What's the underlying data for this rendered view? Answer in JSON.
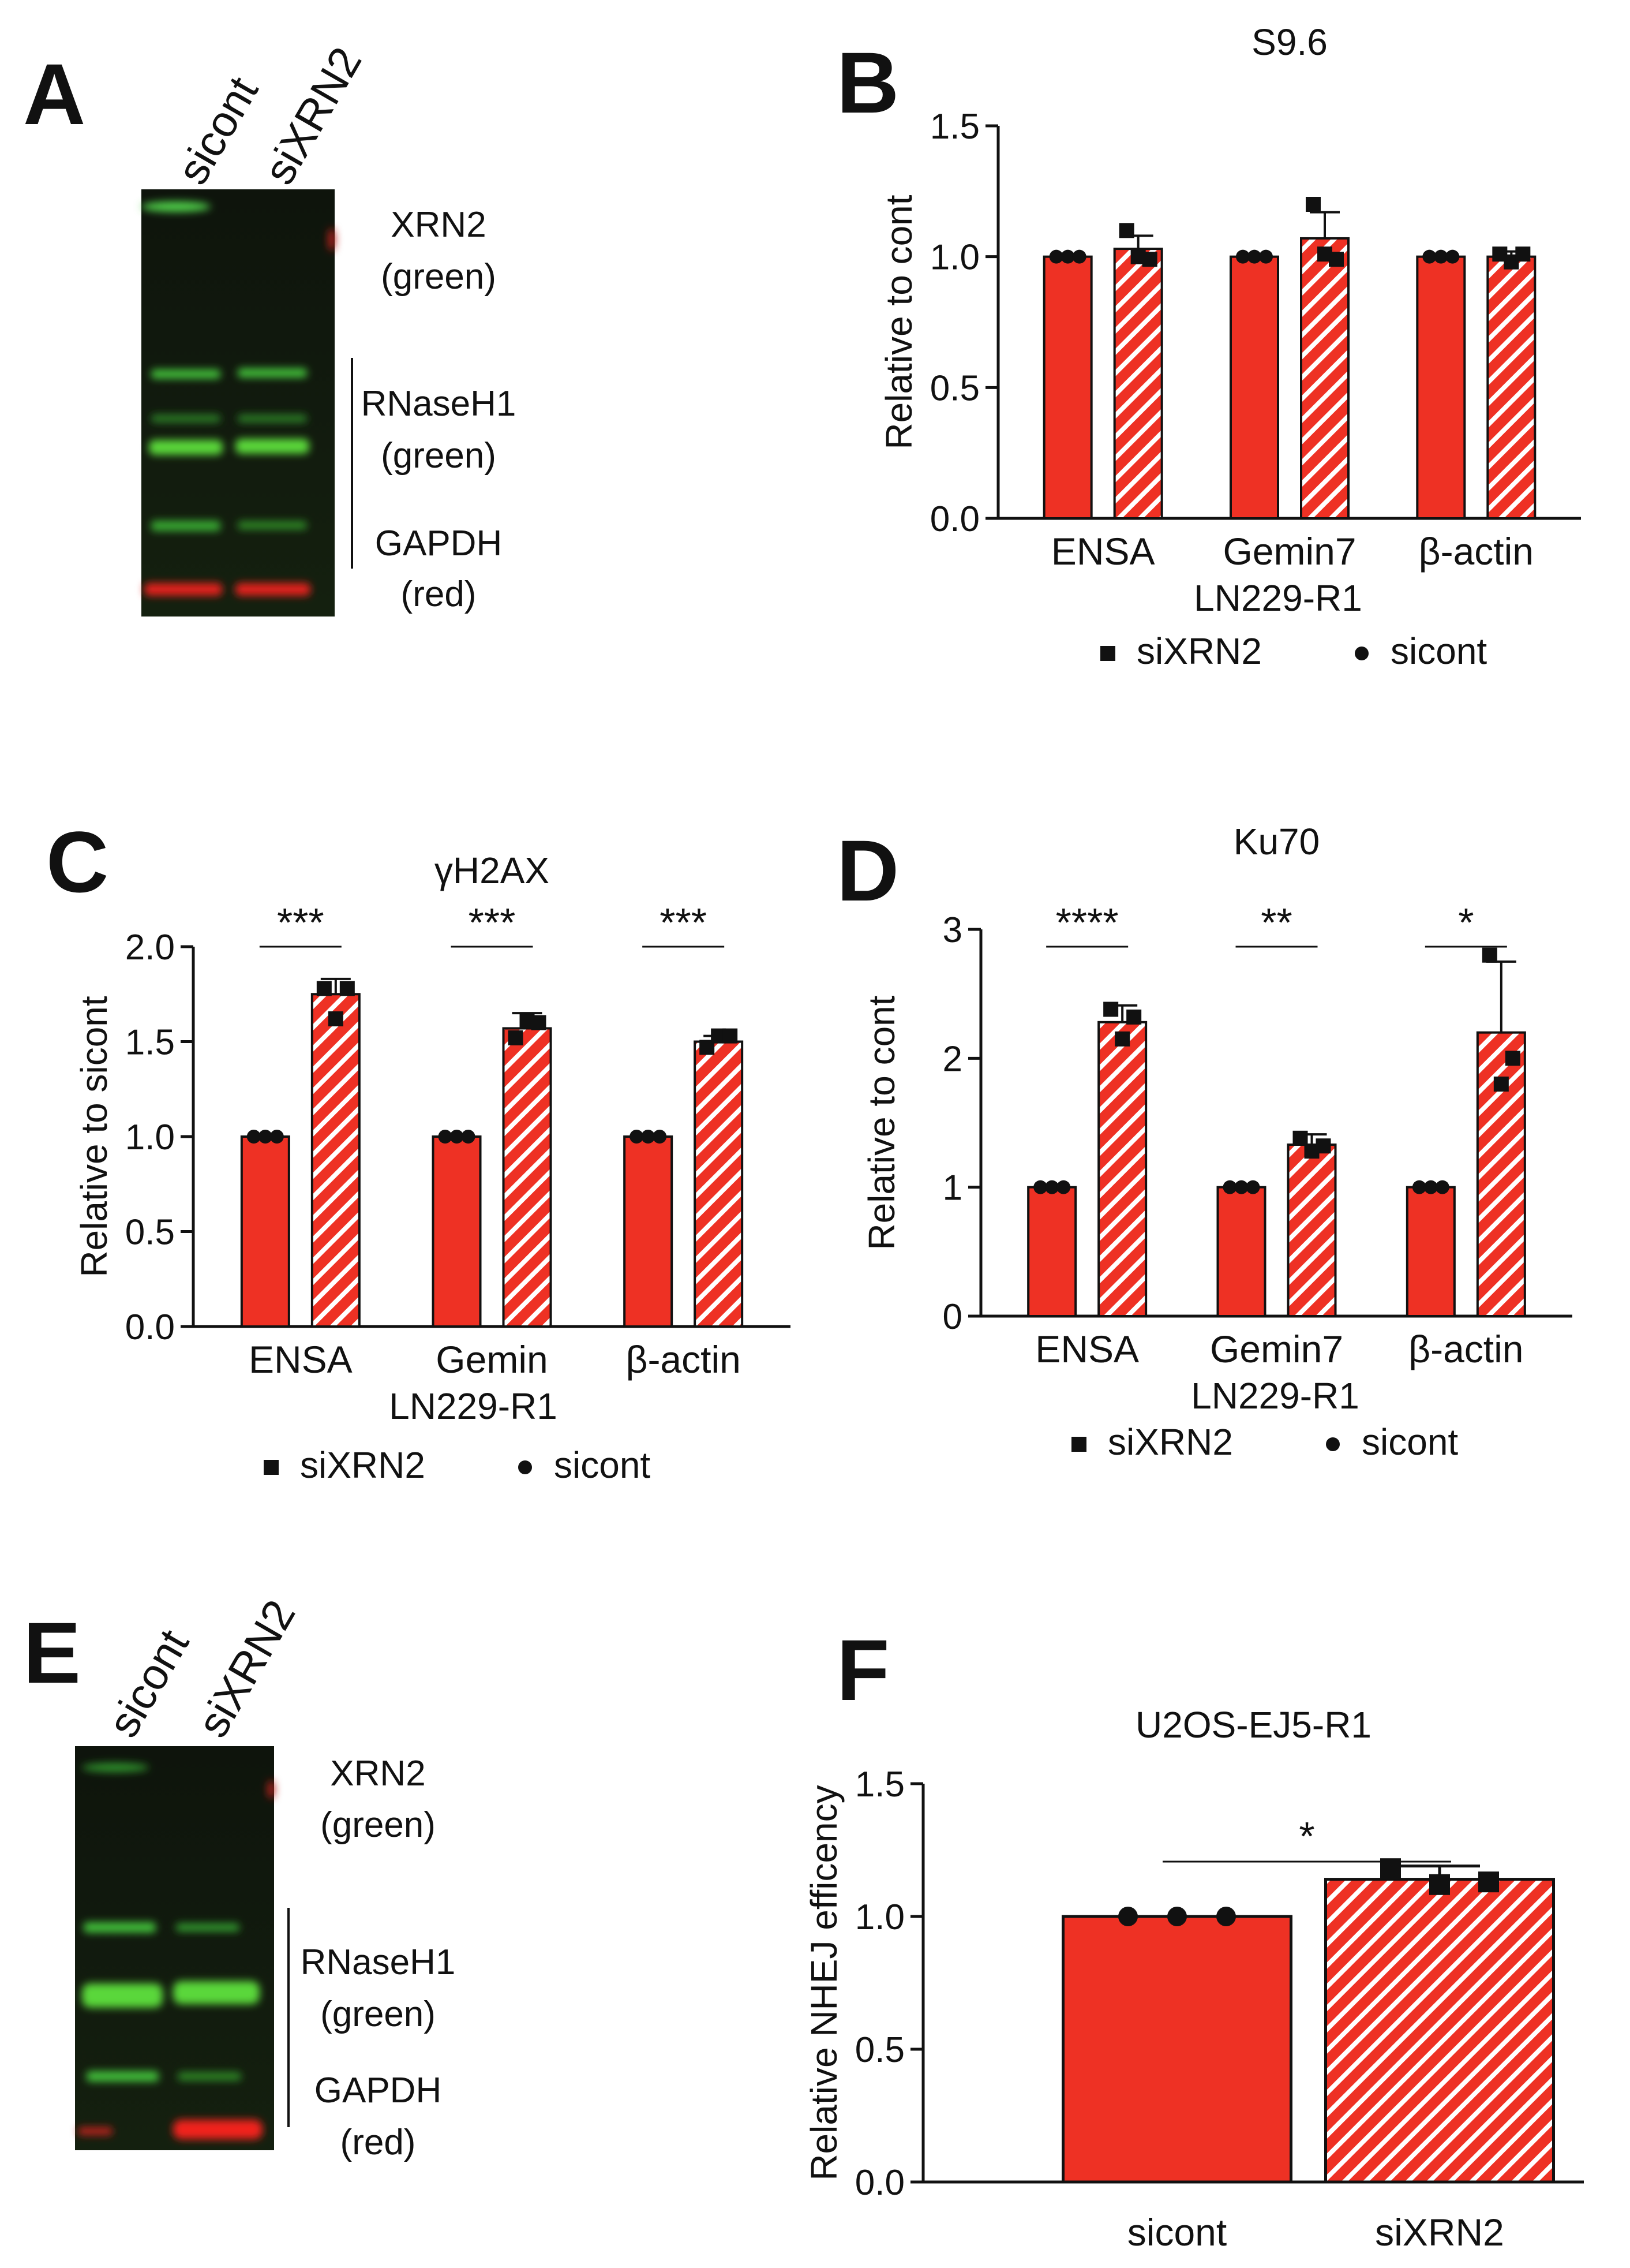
{
  "colors": {
    "bar": "#ee3124",
    "axis": "#111111",
    "hatch": "#ffffff"
  },
  "panels": {
    "A": {
      "label": "A",
      "lanes": [
        "sicont",
        "siXRN2"
      ],
      "bands": [
        {
          "line1": "XRN2",
          "line2": "(green)"
        },
        {
          "line1": "RNaseH1",
          "line2": "(green)"
        },
        {
          "line1": "GAPDH",
          "line2": "(red)"
        }
      ]
    },
    "E": {
      "label": "E",
      "lanes": [
        "sicont",
        "siXRN2"
      ],
      "bands": [
        {
          "line1": "XRN2",
          "line2": "(green)"
        },
        {
          "line1": "RNaseH1",
          "line2": "(green)"
        },
        {
          "line1": "GAPDH",
          "line2": "(red)"
        }
      ]
    }
  },
  "legend": {
    "square_label": "siXRN2",
    "circle_label": "sicont"
  },
  "chart_data": [
    {
      "panel": "B",
      "type": "bar",
      "title": "S9.6",
      "ylabel": "Relative to cont",
      "subtitle": "LN229-R1",
      "ylim": [
        0,
        1.5
      ],
      "yticks": [
        0.0,
        0.5,
        1.0,
        1.5
      ],
      "ytick_labels": [
        "0.0",
        "0.5",
        "1.0",
        "1.5"
      ],
      "categories": [
        "ENSA",
        "Gemin7",
        "β-actin"
      ],
      "series": [
        {
          "name": "sicont",
          "values": [
            1.0,
            1.0,
            1.0
          ],
          "errors": [
            0,
            0,
            0
          ],
          "points": [
            [
              1.0,
              1.0,
              1.0
            ],
            [
              1.0,
              1.0,
              1.0
            ],
            [
              1.0,
              1.0,
              1.0
            ]
          ]
        },
        {
          "name": "siXRN2",
          "values": [
            1.03,
            1.07,
            1.0
          ],
          "errors": [
            0.05,
            0.1,
            0.02
          ],
          "points": [
            [
              1.1,
              1.0,
              0.99
            ],
            [
              1.2,
              1.01,
              0.99
            ],
            [
              1.01,
              0.98,
              1.01
            ]
          ]
        }
      ],
      "significance": [
        "",
        "",
        ""
      ],
      "legend": "bottom"
    },
    {
      "panel": "C",
      "type": "bar",
      "title": "γH2AX",
      "ylabel": "Relative to sicont",
      "subtitle": "LN229-R1",
      "ylim": [
        0,
        2.0
      ],
      "yticks": [
        0.0,
        0.5,
        1.0,
        1.5,
        2.0
      ],
      "ytick_labels": [
        "0.0",
        "0.5",
        "1.0",
        "1.5",
        "2.0"
      ],
      "categories": [
        "ENSA",
        "Gemin",
        "β-actin"
      ],
      "series": [
        {
          "name": "sicont",
          "values": [
            1.0,
            1.0,
            1.0
          ],
          "errors": [
            0,
            0,
            0
          ],
          "points": [
            [
              1.0,
              1.0,
              1.0
            ],
            [
              1.0,
              1.0,
              1.0
            ],
            [
              1.0,
              1.0,
              1.0
            ]
          ]
        },
        {
          "name": "siXRN2",
          "values": [
            1.75,
            1.57,
            1.5
          ],
          "errors": [
            0.08,
            0.08,
            0.03
          ],
          "points": [
            [
              1.78,
              1.62,
              1.78
            ],
            [
              1.52,
              1.61,
              1.6
            ],
            [
              1.47,
              1.53,
              1.53
            ]
          ]
        }
      ],
      "significance": [
        "***",
        "***",
        "***"
      ],
      "legend": "bottom"
    },
    {
      "panel": "D",
      "type": "bar",
      "title": "Ku70",
      "ylabel": "Relative to cont",
      "subtitle": "LN229-R1",
      "ylim": [
        0,
        3
      ],
      "yticks": [
        0,
        1,
        2,
        3
      ],
      "ytick_labels": [
        "0",
        "1",
        "2",
        "3"
      ],
      "categories": [
        "ENSA",
        "Gemin7",
        "β-actin"
      ],
      "series": [
        {
          "name": "sicont",
          "values": [
            1.0,
            1.0,
            1.0
          ],
          "errors": [
            0,
            0,
            0
          ],
          "points": [
            [
              1.0,
              1.0,
              1.0
            ],
            [
              1.0,
              1.0,
              1.0
            ],
            [
              1.0,
              1.0,
              1.0
            ]
          ]
        },
        {
          "name": "siXRN2",
          "values": [
            2.28,
            1.33,
            2.2
          ],
          "errors": [
            0.13,
            0.08,
            0.55
          ],
          "points": [
            [
              2.38,
              2.15,
              2.32
            ],
            [
              1.38,
              1.28,
              1.32
            ],
            [
              2.8,
              1.8,
              2.0
            ]
          ]
        }
      ],
      "significance": [
        "****",
        "**",
        "*"
      ],
      "legend": "bottom"
    },
    {
      "panel": "F",
      "type": "bar",
      "title": "U2OS-EJ5-R1",
      "ylabel": "Relative NHEJ efficency",
      "ylim": [
        0,
        1.5
      ],
      "yticks": [
        0.0,
        0.5,
        1.0,
        1.5
      ],
      "ytick_labels": [
        "0.0",
        "0.5",
        "1.0",
        "1.5"
      ],
      "categories": [
        "sicont",
        "siXRN2"
      ],
      "values": [
        1.0,
        1.14
      ],
      "errors": [
        0,
        0.05
      ],
      "points": [
        [
          1.0,
          1.0,
          1.0
        ],
        [
          1.18,
          1.12,
          1.13
        ]
      ],
      "significance": [
        "*"
      ]
    }
  ]
}
